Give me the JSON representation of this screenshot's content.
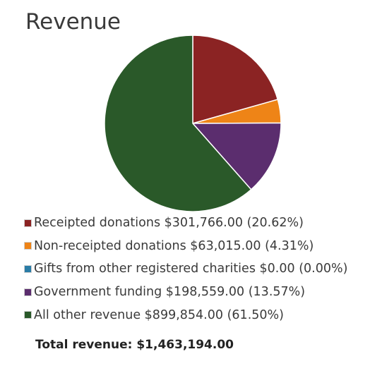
{
  "title": "Revenue",
  "chart_data": {
    "type": "pie",
    "title": "Revenue",
    "slices": [
      {
        "label": "Receipted donations",
        "amount": "$301,766.00",
        "pct_label": "(20.62%)",
        "value": 20.62,
        "color": "#8b2323"
      },
      {
        "label": "Non-receipted donations",
        "amount": "$63,015.00",
        "pct_label": "(4.31%)",
        "value": 4.31,
        "color": "#ee8417"
      },
      {
        "label": "Gifts from other registered charities",
        "amount": "$0.00",
        "pct_label": "(0.00%)",
        "value": 0.0,
        "color": "#2a7ca6"
      },
      {
        "label": "Government funding",
        "amount": "$198,559.00",
        "pct_label": "(13.57%)",
        "value": 13.57,
        "color": "#5b2d6e"
      },
      {
        "label": "All other revenue",
        "amount": "$899,854.00",
        "pct_label": "(61.50%)",
        "value": 61.5,
        "color": "#2a5929"
      }
    ],
    "legend_position": "bottom",
    "total_label": "Total revenue:",
    "total_value": "$1,463,194.00"
  }
}
